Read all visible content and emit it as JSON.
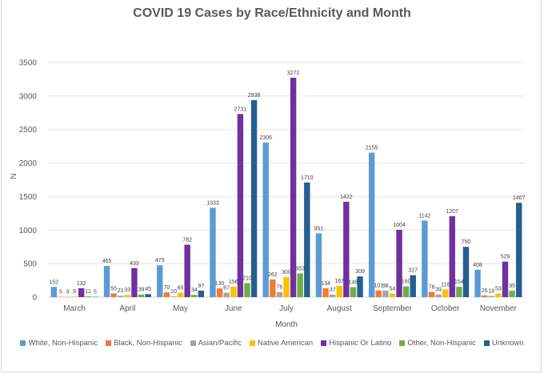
{
  "chart_data": {
    "type": "bar",
    "title": "COVID 19 Cases by Race/Ethnicity and Month",
    "xlabel": "Month",
    "ylabel": "N",
    "ylim": [
      0,
      3500
    ],
    "yticks": [
      0,
      500,
      1000,
      1500,
      2000,
      2500,
      3000,
      3500
    ],
    "ytick_labels": [
      "0",
      "500",
      "1000",
      "1500",
      "2000",
      "2500",
      "3000",
      "3500"
    ],
    "grid": true,
    "legend_position": "bottom",
    "categories": [
      "March",
      "April",
      "May",
      "June",
      "July",
      "August",
      "September",
      "October",
      "November"
    ],
    "series": [
      {
        "name": "White, Non-Hispanic",
        "color": "#5b9bd5",
        "values": [
          152,
          465,
          475,
          1333,
          2306,
          951,
          2155,
          1142,
          408
        ]
      },
      {
        "name": "Black, Non-Hispanic",
        "color": "#ed7d31",
        "values": [
          5,
          55,
          70,
          130,
          262,
          134,
          101,
          78,
          26
        ]
      },
      {
        "name": "Asian/Pacific",
        "color": "#a5a5a5",
        "values": [
          3,
          21,
          10,
          67,
          76,
          37,
          98,
          39,
          18
        ]
      },
      {
        "name": "Native American",
        "color": "#ffc000",
        "values": [
          9,
          33,
          65,
          156,
          300,
          167,
          54,
          116,
          53
        ]
      },
      {
        "name": "Hispanic Or Latino",
        "color": "#7030a0",
        "values": [
          132,
          433,
          782,
          2731,
          3272,
          1422,
          1004,
          1207,
          529
        ]
      },
      {
        "name": "Other, Non-Hispanic",
        "color": "#70ad47",
        "values": [
          11,
          39,
          34,
          210,
          353,
          148,
          160,
          154,
          95
        ]
      },
      {
        "name": "Unknown",
        "color": "#255e91",
        "values": [
          5,
          45,
          97,
          2938,
          1710,
          309,
          327,
          750,
          1407
        ]
      }
    ]
  }
}
